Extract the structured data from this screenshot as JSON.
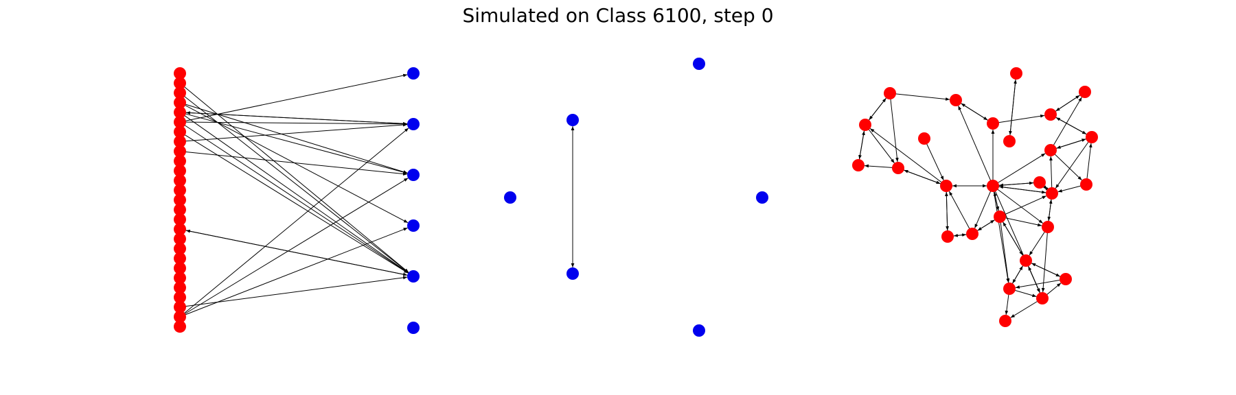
{
  "figure": {
    "title": "Simulated on Class 6100, step 0"
  },
  "colors": {
    "red_node": "#ff0000",
    "blue_node": "#0000ee",
    "edge": "#000000",
    "background": "#ffffff"
  },
  "panels": [
    {
      "id": "bipartite",
      "description_nodes": "red column of nodes on left, blue column on right"
    },
    {
      "id": "blue-pairs",
      "description_nodes": "isolated blue nodes and one bidirectional edge"
    },
    {
      "id": "red-network",
      "description_nodes": "directed network of red nodes"
    }
  ]
}
